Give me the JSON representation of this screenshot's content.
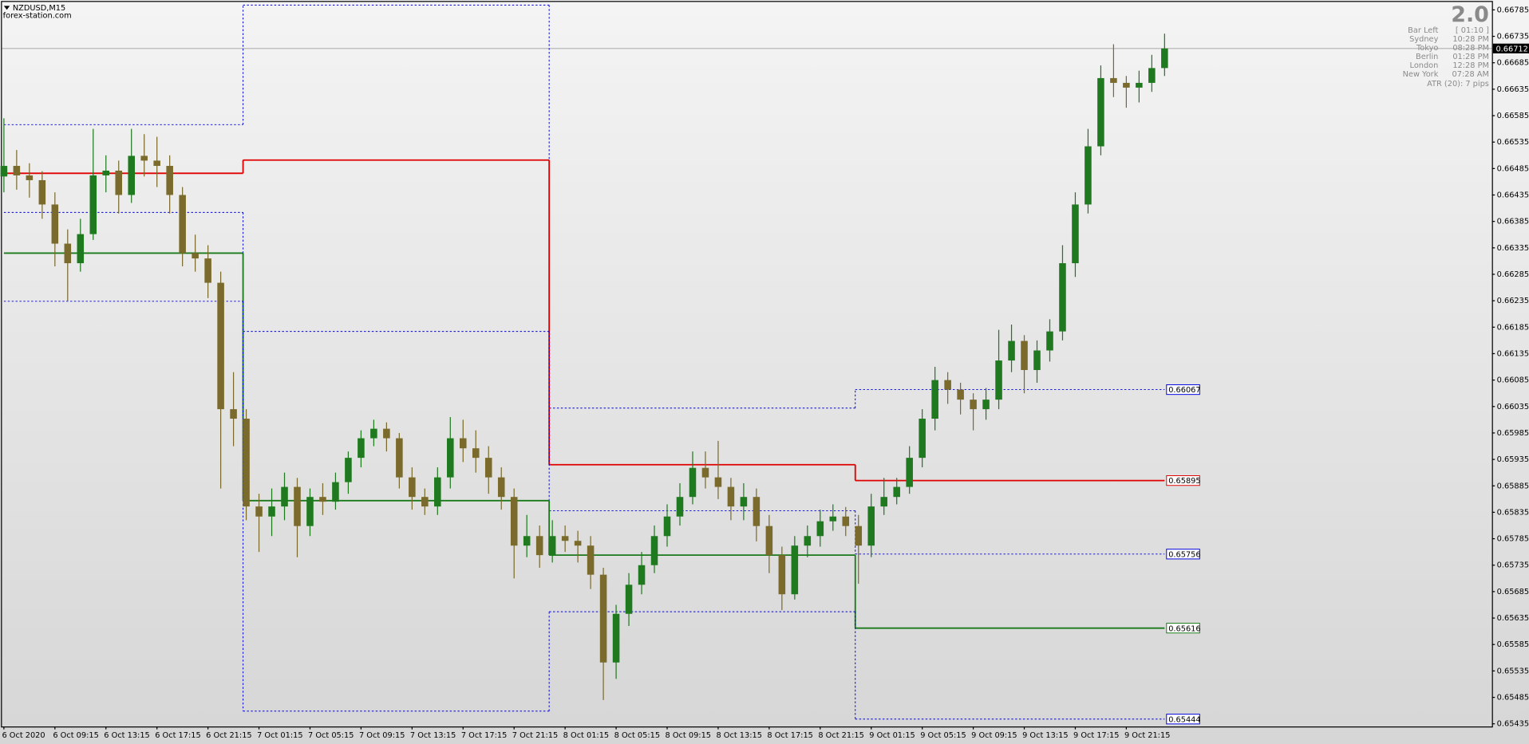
{
  "header": {
    "symbol": "NZDUSD,M15",
    "site": "forex-station.com"
  },
  "info_panel": {
    "version": "2.0",
    "rows": [
      {
        "label": "Bar Left",
        "value": "[ 01:10 ]"
      },
      {
        "label": "Sydney",
        "value": "10:28 PM"
      },
      {
        "label": "Tokyo",
        "value": "08:28 PM"
      },
      {
        "label": "Berlin",
        "value": "01:28 PM"
      },
      {
        "label": "London",
        "value": "12:28 PM"
      },
      {
        "label": "New York",
        "value": "07:28 AM"
      }
    ],
    "atr": "ATR (20): 7 pips"
  },
  "chart_data": {
    "type": "candlestick",
    "categories": [
      "6 Oct 2020",
      null,
      null,
      null,
      "6 Oct 09:15",
      null,
      null,
      null,
      "6 Oct 13:15",
      null,
      null,
      null,
      "6 Oct 17:15",
      null,
      null,
      null,
      "6 Oct 21:15",
      null,
      null,
      null,
      "7 Oct 01:15",
      null,
      null,
      null,
      "7 Oct 05:15",
      null,
      null,
      null,
      "7 Oct 09:15",
      null,
      null,
      null,
      "7 Oct 13:15",
      null,
      null,
      null,
      "7 Oct 17:15",
      null,
      null,
      null,
      "7 Oct 21:15",
      null,
      null,
      null,
      "8 Oct 01:15",
      null,
      null,
      null,
      "8 Oct 05:15",
      null,
      null,
      null,
      "8 Oct 09:15",
      null,
      null,
      null,
      "8 Oct 13:15",
      null,
      null,
      null,
      "8 Oct 17:15",
      null,
      null,
      null,
      "8 Oct 21:15",
      null,
      null,
      null,
      "9 Oct 01:15",
      null,
      null,
      null,
      "9 Oct 05:15",
      null,
      null,
      null,
      "9 Oct 09:15",
      null,
      null,
      null,
      "9 Oct 13:15",
      null,
      null,
      null,
      "9 Oct 17:15",
      null,
      null,
      null,
      "9 Oct 21:15",
      null,
      null,
      null
    ],
    "open": [
      0.6647,
      0.6649,
      0.66472,
      0.66463,
      0.66417,
      0.66343,
      0.66306,
      0.66361,
      0.66472,
      0.66481,
      0.66435,
      0.66509,
      0.665,
      0.6649,
      0.66435,
      0.66325,
      0.66315,
      0.66269,
      0.6603,
      0.66012,
      0.65846,
      0.65827,
      0.65846,
      0.65883,
      0.65809,
      0.65864,
      0.65855,
      0.65892,
      0.65938,
      0.65975,
      0.65993,
      0.65975,
      0.65901,
      0.65864,
      0.65846,
      0.65901,
      0.65975,
      0.65956,
      0.65938,
      0.65901,
      0.65864,
      0.65772,
      0.6579,
      0.65754,
      0.6579,
      0.65781,
      0.65772,
      0.65717,
      0.65551,
      0.65643,
      0.65698,
      0.65735,
      0.6579,
      0.65827,
      0.65864,
      0.65919,
      0.65901,
      0.65883,
      0.65846,
      0.65864,
      0.65809,
      0.65754,
      0.6568,
      0.65772,
      0.6579,
      0.65818,
      0.65827,
      0.65809,
      0.65772,
      0.65846,
      0.65864,
      0.65883,
      0.65938,
      0.66012,
      0.66085,
      0.66067,
      0.66048,
      0.6603,
      0.66048,
      0.66122,
      0.66159,
      0.66104,
      0.66141,
      0.66177,
      0.66306,
      0.66417,
      0.66527,
      0.66656,
      0.66647,
      0.66638,
      0.66647,
      0.66675
    ],
    "high": [
      0.6658,
      0.6652,
      0.66495,
      0.6648,
      0.6644,
      0.6637,
      0.6639,
      0.6656,
      0.6651,
      0.665,
      0.6656,
      0.6655,
      0.66545,
      0.6651,
      0.6645,
      0.6636,
      0.6634,
      0.6629,
      0.661,
      0.6603,
      0.6587,
      0.6588,
      0.6591,
      0.659,
      0.6588,
      0.6589,
      0.6591,
      0.6595,
      0.6599,
      0.6601,
      0.66005,
      0.65985,
      0.6592,
      0.6588,
      0.6592,
      0.66015,
      0.6601,
      0.6599,
      0.6596,
      0.6592,
      0.6588,
      0.6583,
      0.6581,
      0.6582,
      0.6581,
      0.658,
      0.6579,
      0.6573,
      0.6566,
      0.6572,
      0.6576,
      0.6581,
      0.6585,
      0.6589,
      0.6595,
      0.6595,
      0.6597,
      0.659,
      0.6589,
      0.6588,
      0.6583,
      0.6577,
      0.6579,
      0.6581,
      0.6584,
      0.6585,
      0.65845,
      0.6583,
      0.6587,
      0.659,
      0.659,
      0.6596,
      0.6603,
      0.6611,
      0.661,
      0.6608,
      0.6606,
      0.6607,
      0.6618,
      0.6619,
      0.6617,
      0.6616,
      0.662,
      0.6634,
      0.6644,
      0.6656,
      0.6668,
      0.6672,
      0.6666,
      0.6667,
      0.667,
      0.6674
    ],
    "low": [
      0.6644,
      0.66445,
      0.6643,
      0.6639,
      0.663,
      0.66235,
      0.6629,
      0.6635,
      0.6644,
      0.664,
      0.6642,
      0.6647,
      0.6645,
      0.664,
      0.663,
      0.6629,
      0.6624,
      0.6588,
      0.6596,
      0.6582,
      0.6576,
      0.6579,
      0.6582,
      0.6575,
      0.6579,
      0.6583,
      0.6584,
      0.6587,
      0.6592,
      0.6596,
      0.6595,
      0.6588,
      0.6584,
      0.6583,
      0.6583,
      0.6588,
      0.6593,
      0.6591,
      0.6587,
      0.6584,
      0.6571,
      0.6575,
      0.6573,
      0.6574,
      0.6576,
      0.6574,
      0.6569,
      0.6548,
      0.6552,
      0.6562,
      0.6568,
      0.6572,
      0.6577,
      0.6581,
      0.6585,
      0.6588,
      0.6586,
      0.6582,
      0.6582,
      0.6578,
      0.6572,
      0.6565,
      0.6567,
      0.6575,
      0.6577,
      0.658,
      0.6579,
      0.657,
      0.6575,
      0.6583,
      0.6585,
      0.6587,
      0.6592,
      0.6599,
      0.6604,
      0.6602,
      0.6599,
      0.6601,
      0.6603,
      0.661,
      0.6606,
      0.6608,
      0.6612,
      0.6616,
      0.6628,
      0.664,
      0.6651,
      0.6662,
      0.666,
      0.6661,
      0.6663,
      0.6666
    ],
    "close": [
      0.6649,
      0.66472,
      0.66463,
      0.66417,
      0.66343,
      0.66306,
      0.66361,
      0.66472,
      0.66481,
      0.66435,
      0.66509,
      0.665,
      0.6649,
      0.66435,
      0.66325,
      0.66315,
      0.66269,
      0.6603,
      0.66012,
      0.65846,
      0.65827,
      0.65846,
      0.65883,
      0.65809,
      0.65864,
      0.65855,
      0.65892,
      0.65938,
      0.65975,
      0.65993,
      0.65975,
      0.65901,
      0.65864,
      0.65846,
      0.65901,
      0.65975,
      0.65956,
      0.65938,
      0.65901,
      0.65864,
      0.65772,
      0.6579,
      0.65754,
      0.6579,
      0.65781,
      0.65772,
      0.65717,
      0.65551,
      0.65643,
      0.65698,
      0.65735,
      0.6579,
      0.65827,
      0.65864,
      0.65919,
      0.65901,
      0.65883,
      0.65846,
      0.65864,
      0.65809,
      0.65754,
      0.6568,
      0.65772,
      0.6579,
      0.65818,
      0.65827,
      0.65809,
      0.65772,
      0.65846,
      0.65864,
      0.65883,
      0.65938,
      0.66012,
      0.66085,
      0.66067,
      0.66048,
      0.6603,
      0.66048,
      0.66122,
      0.66159,
      0.66104,
      0.66141,
      0.66177,
      0.66306,
      0.66417,
      0.66527,
      0.66656,
      0.66647,
      0.66638,
      0.66647,
      0.66675,
      0.66712
    ],
    "up_color": "#1f7a1f",
    "down_color": "#7a6a2c",
    "ylim": [
      0.6543,
      0.668
    ],
    "yticks": [
      0.66785,
      0.66735,
      0.66685,
      0.66635,
      0.66585,
      0.66535,
      0.66485,
      0.66435,
      0.66385,
      0.66335,
      0.66285,
      0.66235,
      0.66185,
      0.66135,
      0.66085,
      0.66035,
      0.65985,
      0.65935,
      0.65885,
      0.65835,
      0.65785,
      0.65735,
      0.65685,
      0.65635,
      0.65585,
      0.65535,
      0.65485,
      0.65435
    ],
    "levels": {
      "x": [
        0,
        18.75,
        42.75,
        66.75,
        91
      ],
      "series": [
        {
          "color": "#0000e0",
          "dashed": true,
          "values": [
            0.66568,
            0.66794,
            0.66032,
            0.66067
          ]
        },
        {
          "color": "#e00000",
          "dashed": false,
          "values": [
            0.66476,
            0.66501,
            0.65925,
            0.65895
          ]
        },
        {
          "color": "#0000e0",
          "dashed": true,
          "values": [
            0.66402,
            0.66177,
            0.65838,
            0.65756
          ]
        },
        {
          "color": "#1a7a1a",
          "dashed": false,
          "values": [
            0.66325,
            0.65857,
            0.65754,
            0.65616
          ]
        },
        {
          "color": "#0000e0",
          "dashed": true,
          "values": [
            0.66234,
            0.65459,
            0.65647,
            0.65444
          ]
        }
      ]
    }
  }
}
